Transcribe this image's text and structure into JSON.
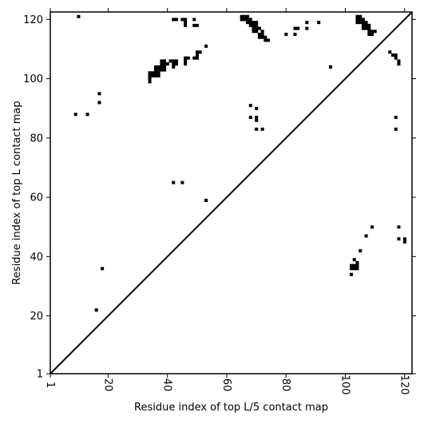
{
  "chart_data": {
    "type": "heatmap",
    "xlabel": "Residue index of top L/5 contact map",
    "ylabel": "Residue index of top L contact map",
    "xlim": [
      1,
      122
    ],
    "ylim": [
      1,
      122
    ],
    "x_ticks": [
      1,
      20,
      40,
      60,
      80,
      100,
      120
    ],
    "y_ticks": [
      1,
      20,
      40,
      60,
      80,
      100,
      120
    ],
    "diagonal_line": true,
    "grid": false,
    "cell_color": "#000000",
    "upper_contacts": [
      [
        10,
        121
      ],
      [
        42,
        120
      ],
      [
        43,
        120
      ],
      [
        45,
        120
      ],
      [
        46,
        120
      ],
      [
        46,
        119
      ],
      [
        46,
        118
      ],
      [
        49,
        120
      ],
      [
        49,
        118
      ],
      [
        50,
        118
      ],
      [
        53,
        111
      ],
      [
        50,
        109
      ],
      [
        51,
        109
      ],
      [
        50,
        108
      ],
      [
        49,
        107
      ],
      [
        50,
        107
      ],
      [
        46,
        107
      ],
      [
        47,
        107
      ],
      [
        46,
        106
      ],
      [
        46,
        105
      ],
      [
        41,
        106
      ],
      [
        42,
        106
      ],
      [
        43,
        106
      ],
      [
        42,
        105
      ],
      [
        43,
        105
      ],
      [
        42,
        104
      ],
      [
        38,
        106
      ],
      [
        39,
        106
      ],
      [
        39,
        105
      ],
      [
        40,
        105
      ],
      [
        38,
        105
      ],
      [
        36,
        104
      ],
      [
        37,
        104
      ],
      [
        38,
        104
      ],
      [
        39,
        104
      ],
      [
        36,
        103
      ],
      [
        37,
        103
      ],
      [
        38,
        103
      ],
      [
        39,
        103
      ],
      [
        35,
        102
      ],
      [
        36,
        102
      ],
      [
        37,
        102
      ],
      [
        34,
        102
      ],
      [
        34,
        101
      ],
      [
        35,
        101
      ],
      [
        36,
        101
      ],
      [
        37,
        101
      ],
      [
        34,
        100
      ],
      [
        34,
        99
      ],
      [
        65,
        121
      ],
      [
        66,
        121
      ],
      [
        67,
        121
      ],
      [
        65,
        120
      ],
      [
        66,
        120
      ],
      [
        67,
        120
      ],
      [
        68,
        120
      ],
      [
        67,
        119
      ],
      [
        68,
        119
      ],
      [
        69,
        119
      ],
      [
        70,
        119
      ],
      [
        68,
        118
      ],
      [
        69,
        118
      ],
      [
        70,
        118
      ],
      [
        69,
        117
      ],
      [
        70,
        117
      ],
      [
        71,
        117
      ],
      [
        69,
        116
      ],
      [
        70,
        116
      ],
      [
        72,
        116
      ],
      [
        71,
        115
      ],
      [
        72,
        115
      ],
      [
        71,
        114
      ],
      [
        72,
        114
      ],
      [
        73,
        114
      ],
      [
        73,
        113
      ],
      [
        74,
        113
      ],
      [
        80,
        115
      ],
      [
        83,
        117
      ],
      [
        84,
        117
      ],
      [
        83,
        115
      ],
      [
        87,
        119
      ],
      [
        87,
        117
      ],
      [
        91,
        119
      ],
      [
        95,
        104
      ],
      [
        104,
        121
      ],
      [
        105,
        121
      ],
      [
        104,
        120
      ],
      [
        105,
        120
      ],
      [
        106,
        120
      ],
      [
        104,
        119
      ],
      [
        105,
        119
      ],
      [
        106,
        119
      ],
      [
        107,
        119
      ],
      [
        106,
        118
      ],
      [
        107,
        118
      ],
      [
        108,
        118
      ],
      [
        106,
        117
      ],
      [
        107,
        117
      ],
      [
        108,
        117
      ],
      [
        108,
        116
      ],
      [
        109,
        116
      ],
      [
        110,
        116
      ],
      [
        108,
        115
      ],
      [
        109,
        115
      ],
      [
        115,
        109
      ],
      [
        116,
        108
      ],
      [
        117,
        108
      ],
      [
        117,
        107
      ],
      [
        118,
        106
      ],
      [
        118,
        105
      ],
      [
        9,
        88
      ],
      [
        13,
        88
      ],
      [
        17,
        95
      ],
      [
        17,
        92
      ],
      [
        68,
        91
      ],
      [
        70,
        90
      ],
      [
        68,
        87
      ],
      [
        70,
        87
      ],
      [
        70,
        86
      ],
      [
        70,
        83
      ],
      [
        72,
        83
      ],
      [
        117,
        87
      ],
      [
        117,
        83
      ]
    ],
    "lower_contacts": [
      [
        16,
        22
      ],
      [
        18,
        36
      ],
      [
        42,
        65
      ],
      [
        45,
        65
      ],
      [
        53,
        59
      ],
      [
        95,
        104
      ],
      [
        102,
        37
      ],
      [
        103,
        37
      ],
      [
        104,
        37
      ],
      [
        104,
        38
      ],
      [
        103,
        36
      ],
      [
        104,
        36
      ],
      [
        102,
        36
      ],
      [
        102,
        34
      ],
      [
        103,
        39
      ],
      [
        105,
        42
      ],
      [
        107,
        47
      ],
      [
        109,
        50
      ],
      [
        118,
        50
      ],
      [
        118,
        46
      ],
      [
        120,
        46
      ],
      [
        120,
        45
      ]
    ]
  }
}
